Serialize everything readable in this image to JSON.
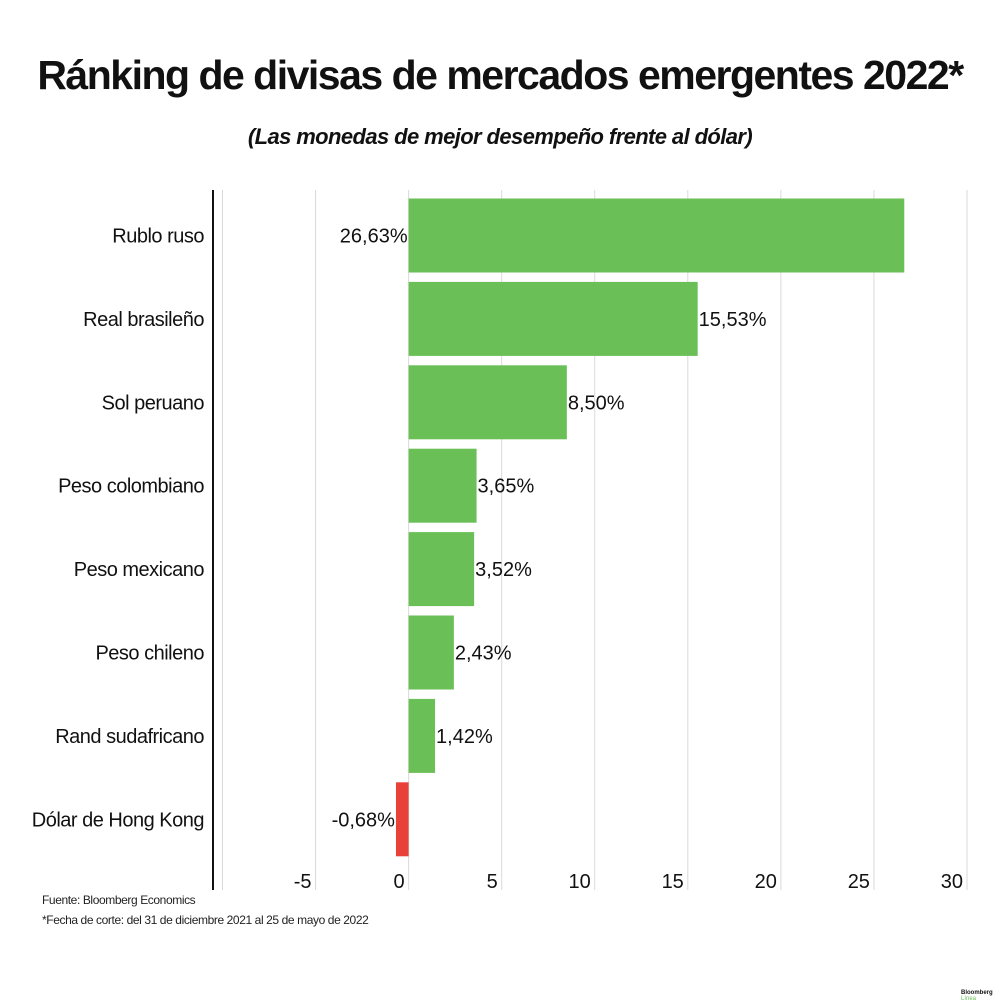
{
  "title": "Ránking de divisas de mercados emergentes 2022*",
  "subtitle": "(Las monedas de mejor desempeño frente al dólar)",
  "source": "Fuente: Bloomberg Economics",
  "footnote": "*Fecha de corte: del 31 de diciembre 2021 al 25 de mayo de 2022",
  "logo": {
    "line1": "Bloomberg",
    "line2": "Línea"
  },
  "colors": {
    "positive": "#6abf57",
    "negative": "#e8413a",
    "grid": "#d9d9d9",
    "axis": "#111111"
  },
  "chart_data": {
    "type": "bar",
    "orientation": "horizontal",
    "title": "Ránking de divisas de mercados emergentes 2022*",
    "subtitle": "(Las monedas de mejor desempeño frente al dólar)",
    "categories": [
      "Rublo ruso",
      "Real brasileño",
      "Sol peruano",
      "Peso colombiano",
      "Peso mexicano",
      "Peso chileno",
      "Rand sudafricano",
      "Dólar de Hong Kong"
    ],
    "values": [
      26.63,
      15.53,
      8.5,
      3.65,
      3.52,
      2.43,
      1.42,
      -0.68
    ],
    "data_labels": [
      "26,63%",
      "15,53%",
      "8,50%",
      "3,65%",
      "3,52%",
      "2,43%",
      "1,42%",
      "-0,68%"
    ],
    "xlim": [
      -10,
      30
    ],
    "xticks": [
      -5,
      0,
      5,
      10,
      15,
      20,
      25,
      30
    ],
    "xtick_labels": [
      "-5",
      "0",
      "5",
      "10",
      "15",
      "20",
      "25",
      "30"
    ],
    "grid": true,
    "xlabel": "",
    "ylabel": ""
  }
}
